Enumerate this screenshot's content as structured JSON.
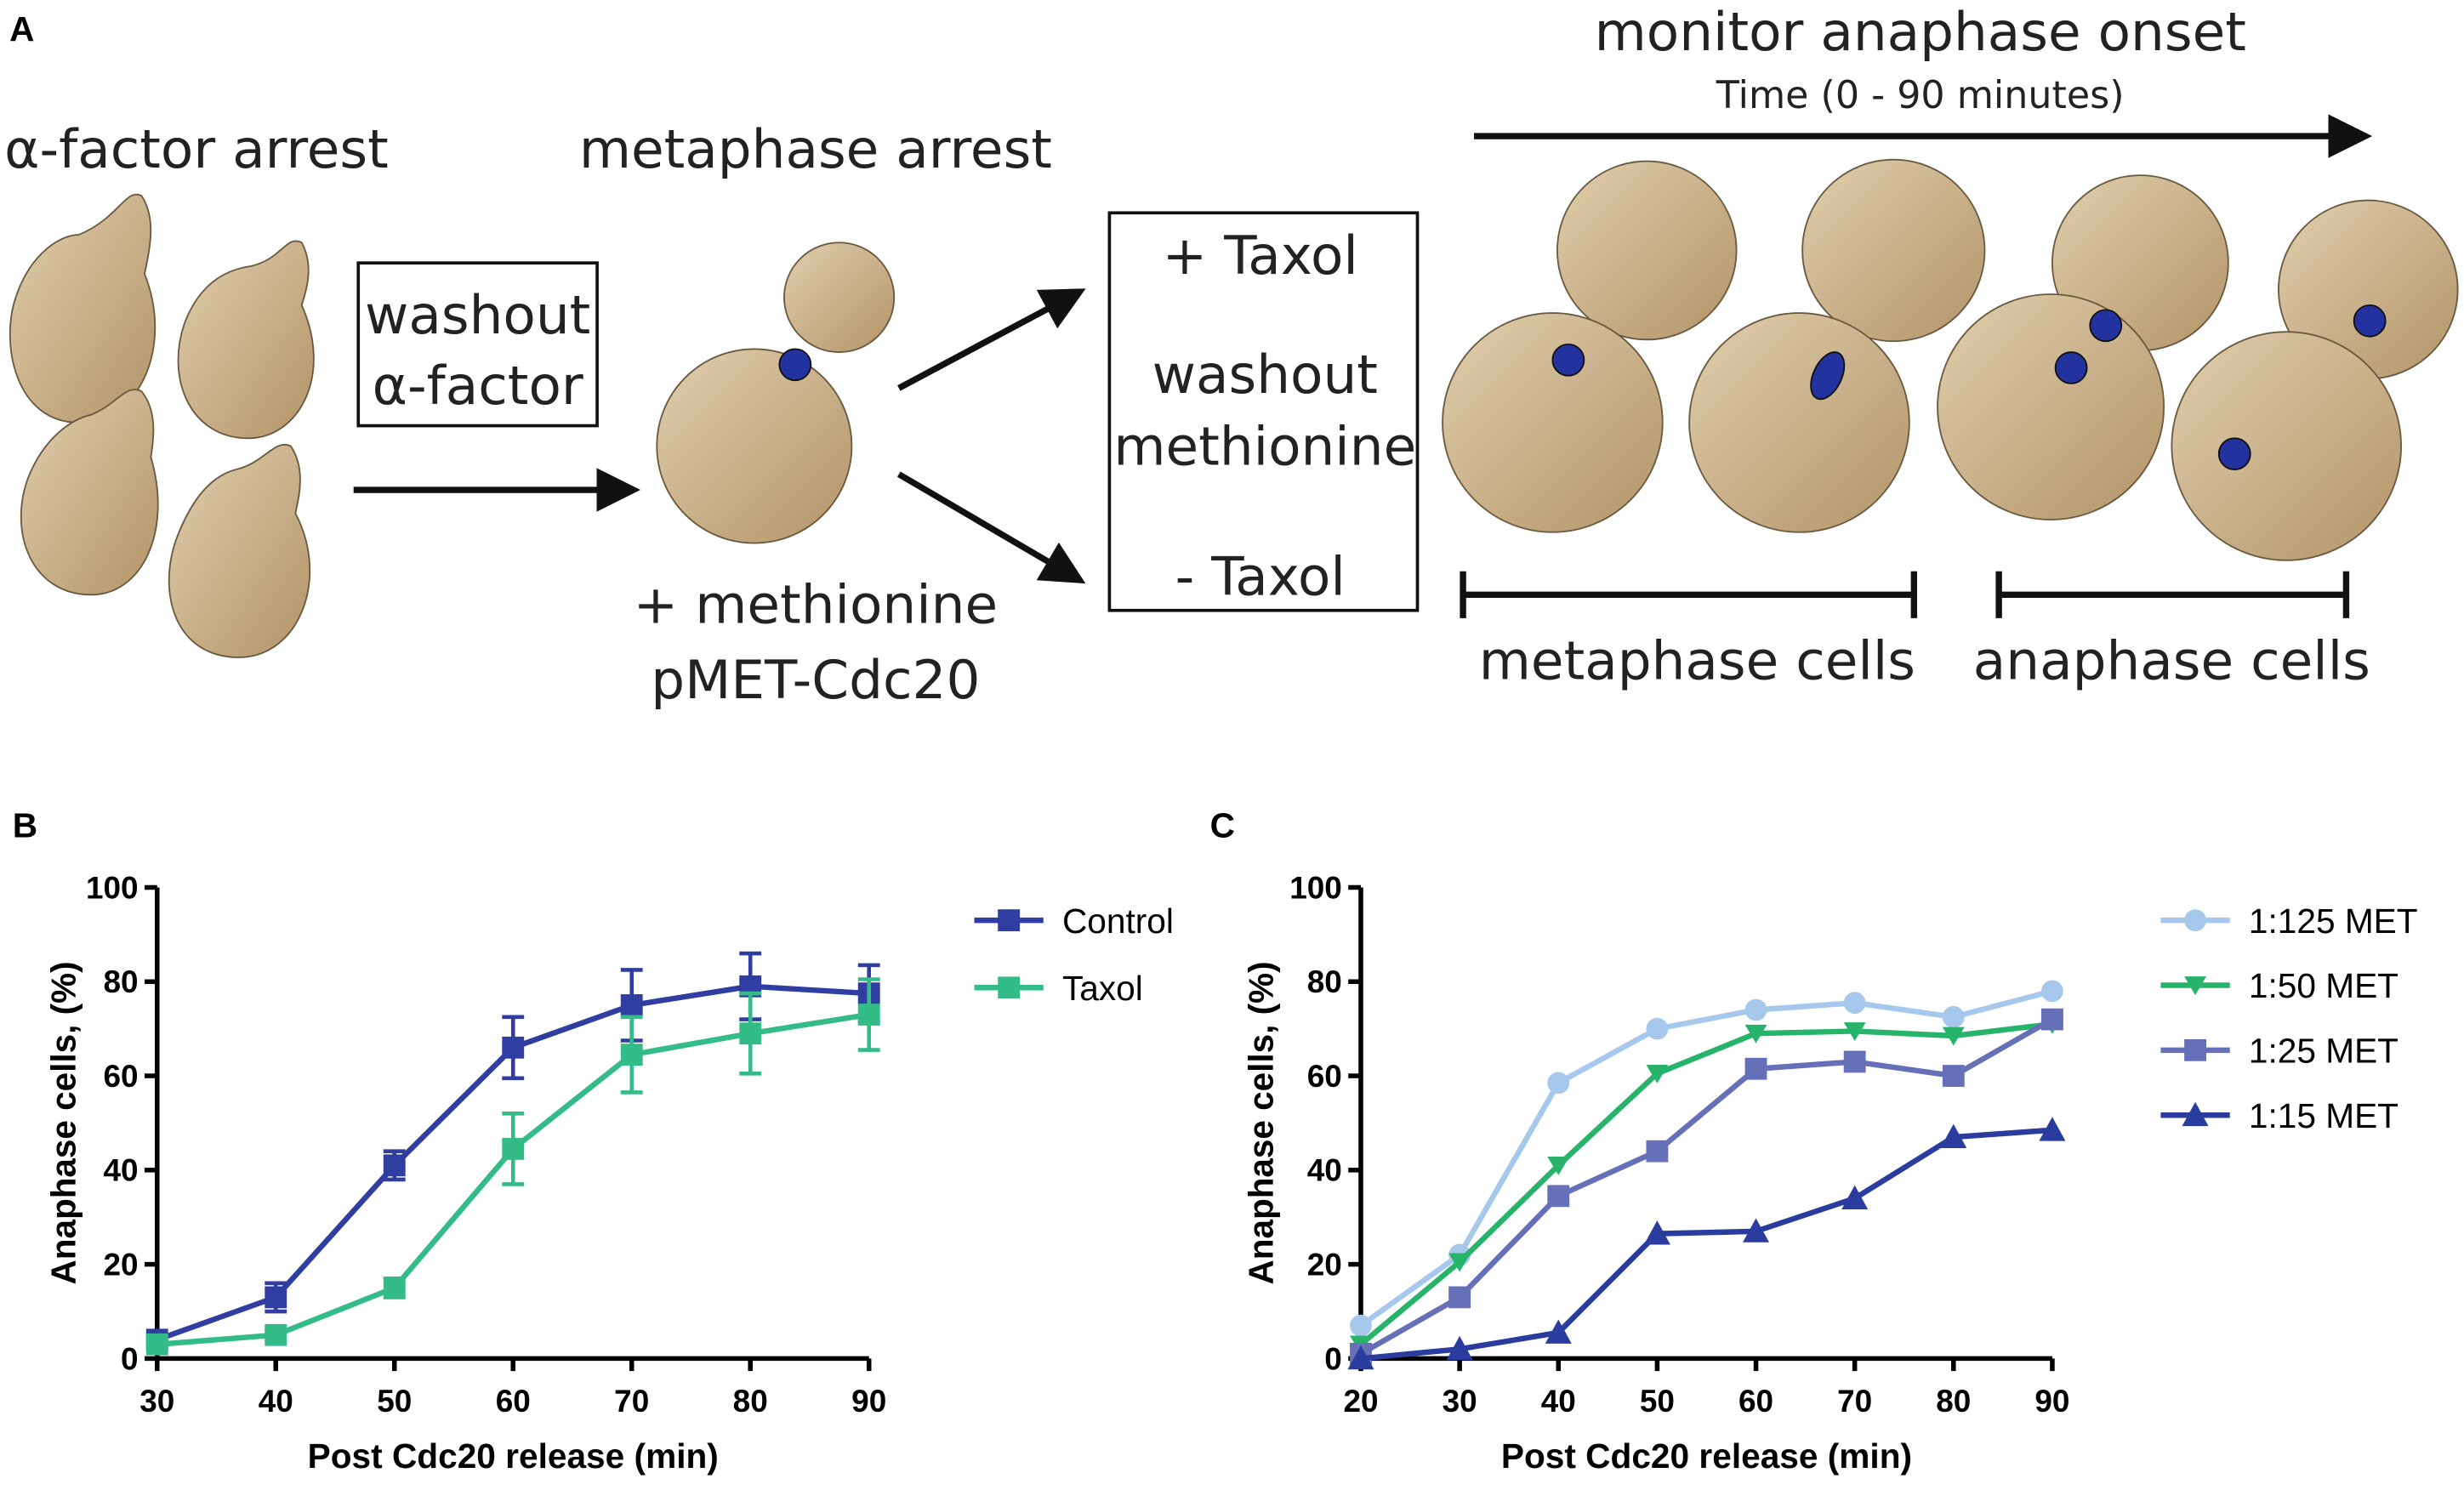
{
  "panel_a": {
    "label": "A",
    "alpha_arrest": "α-factor arrest",
    "washout_box": [
      "washout",
      "α-factor"
    ],
    "metaphase_arrest": "metaphase arrest",
    "methionine": "+ methionine",
    "construct": "pMET-Cdc20",
    "treatment_box": [
      "+ Taxol",
      "washout",
      "methionine",
      "- Taxol"
    ],
    "monitor": "monitor anaphase onset",
    "time": "Time (0 - 90 minutes)",
    "metaphase_cells": "metaphase cells",
    "anaphase_cells": "anaphase cells"
  },
  "chart_data": [
    {
      "type": "line",
      "panel": "B",
      "xlabel": "Post Cdc20 release (min)",
      "ylabel": "Anaphase cells, (%)",
      "x": [
        30,
        40,
        50,
        60,
        70,
        80,
        90
      ],
      "series": [
        {
          "name": "Control",
          "color": "#2f3ea0",
          "marker": "square",
          "values": [
            4,
            13,
            41,
            66,
            75,
            79,
            77.5
          ],
          "errors": [
            1,
            3,
            3,
            6.5,
            7.5,
            7,
            6
          ]
        },
        {
          "name": "Taxol",
          "color": "#33bb88",
          "marker": "square",
          "values": [
            3,
            5,
            15,
            44.5,
            64.5,
            69,
            73
          ],
          "errors": [
            1,
            1,
            2,
            7.5,
            8,
            8.5,
            7.5
          ]
        }
      ],
      "xlim": [
        30,
        90
      ],
      "xticks": [
        30,
        40,
        50,
        60,
        70,
        80,
        90
      ],
      "ylim": [
        0,
        100
      ],
      "yticks": [
        0,
        20,
        40,
        60,
        80,
        100
      ],
      "legend": "right"
    },
    {
      "type": "line",
      "panel": "C",
      "xlabel": "Post Cdc20 release (min)",
      "ylabel": "Anaphase cells, (%)",
      "x": [
        20,
        30,
        40,
        50,
        60,
        70,
        80,
        90
      ],
      "series": [
        {
          "name": "1:125 MET",
          "color": "#a6c8ec",
          "marker": "circle",
          "values": [
            7,
            22,
            58.5,
            70,
            74,
            75.5,
            72.5,
            78
          ]
        },
        {
          "name": "1:50 MET",
          "color": "#27b46a",
          "marker": "triangle-down",
          "values": [
            3,
            20.5,
            41,
            60.5,
            69,
            69.5,
            68.5,
            71
          ]
        },
        {
          "name": "1:25 MET",
          "color": "#6570b8",
          "marker": "square",
          "values": [
            1,
            13,
            34.5,
            44,
            61.5,
            63,
            60,
            72
          ]
        },
        {
          "name": "1:15 MET",
          "color": "#2a3d9e",
          "marker": "triangle-up",
          "values": [
            0,
            2,
            5.5,
            26.5,
            27,
            34,
            47,
            48.5
          ]
        }
      ],
      "xlim": [
        20,
        90
      ],
      "xticks": [
        20,
        30,
        40,
        50,
        60,
        70,
        80,
        90
      ],
      "ylim": [
        0,
        100
      ],
      "yticks": [
        0,
        20,
        40,
        60,
        80,
        100
      ],
      "legend": "right"
    }
  ]
}
